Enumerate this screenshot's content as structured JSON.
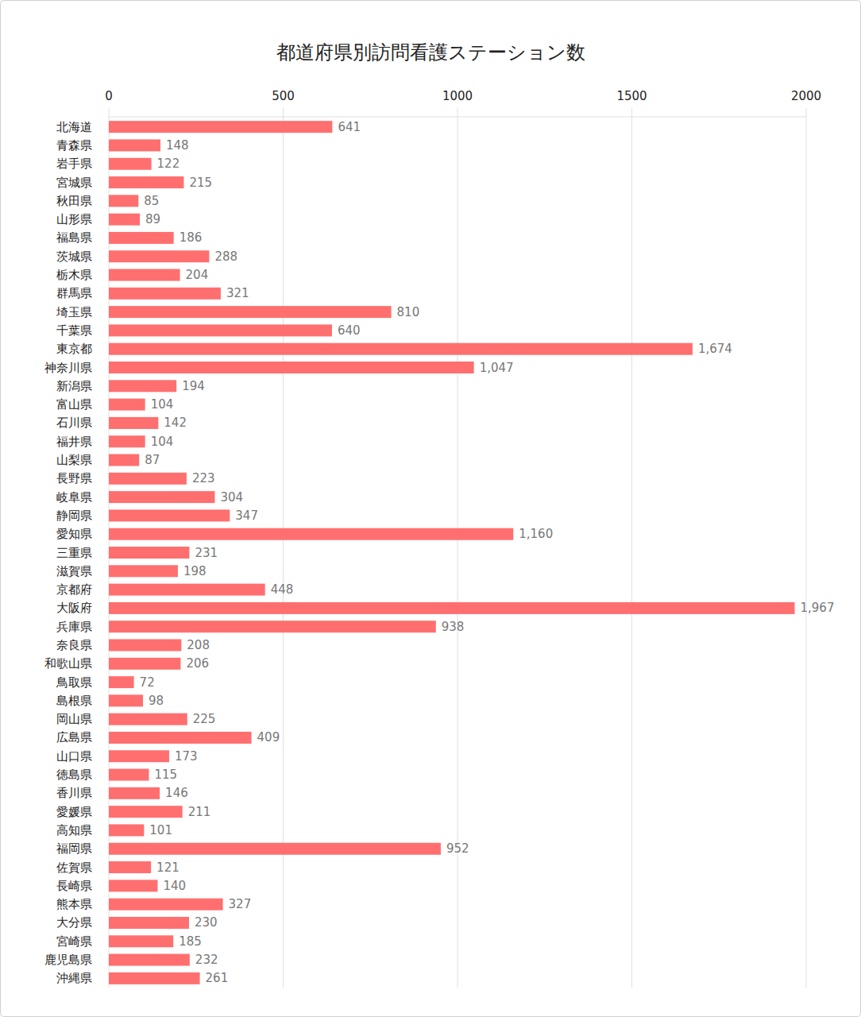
{
  "chart_data": {
    "type": "bar",
    "orientation": "horizontal",
    "title": "都道府県別訪問看護ステーション数",
    "categories": [
      "北海道",
      "青森県",
      "岩手県",
      "宮城県",
      "秋田県",
      "山形県",
      "福島県",
      "茨城県",
      "栃木県",
      "群馬県",
      "埼玉県",
      "千葉県",
      "東京都",
      "神奈川県",
      "新潟県",
      "富山県",
      "石川県",
      "福井県",
      "山梨県",
      "長野県",
      "岐阜県",
      "静岡県",
      "愛知県",
      "三重県",
      "滋賀県",
      "京都府",
      "大阪府",
      "兵庫県",
      "奈良県",
      "和歌山県",
      "鳥取県",
      "島根県",
      "岡山県",
      "広島県",
      "山口県",
      "徳島県",
      "香川県",
      "愛媛県",
      "高知県",
      "福岡県",
      "佐賀県",
      "長崎県",
      "熊本県",
      "大分県",
      "宮崎県",
      "鹿児島県",
      "沖縄県"
    ],
    "values": [
      641,
      148,
      122,
      215,
      85,
      89,
      186,
      288,
      204,
      321,
      810,
      640,
      1674,
      1047,
      194,
      104,
      142,
      104,
      87,
      223,
      304,
      347,
      1160,
      231,
      198,
      448,
      1967,
      938,
      208,
      206,
      72,
      98,
      225,
      409,
      173,
      115,
      146,
      211,
      101,
      952,
      121,
      140,
      327,
      230,
      185,
      232,
      261
    ],
    "value_labels": [
      "641",
      "148",
      "122",
      "215",
      "85",
      "89",
      "186",
      "288",
      "204",
      "321",
      "810",
      "640",
      "1,674",
      "1,047",
      "194",
      "104",
      "142",
      "104",
      "87",
      "223",
      "304",
      "347",
      "1,160",
      "231",
      "198",
      "448",
      "1,967",
      "938",
      "208",
      "206",
      "72",
      "98",
      "225",
      "409",
      "173",
      "115",
      "146",
      "211",
      "101",
      "952",
      "121",
      "140",
      "327",
      "230",
      "185",
      "232",
      "261"
    ],
    "color": "#ff6f6f",
    "xlim": [
      0,
      2000
    ],
    "xticks": [
      0,
      500,
      1000,
      1500,
      2000
    ],
    "grid": true,
    "data_labels": true
  }
}
